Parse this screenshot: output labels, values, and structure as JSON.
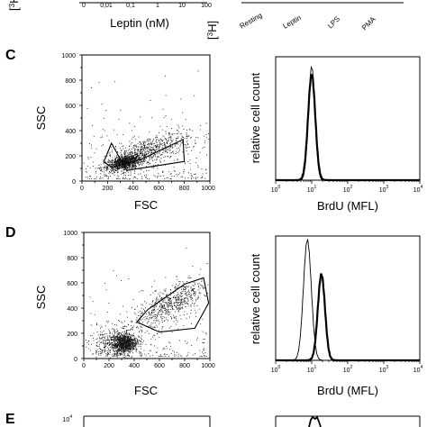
{
  "top_strip": {
    "left_ticks": [
      "0",
      "0,01",
      "0,1",
      "1",
      "10",
      "100"
    ],
    "left_xlabel": "Leptin (nM)",
    "ylabel_base": "[",
    "ylabel_sup": "3",
    "ylabel_tail": "H]",
    "right_categories": [
      "Resting",
      "Leptin",
      "LPS",
      "PMA"
    ]
  },
  "panels": [
    {
      "id": "C",
      "label": "C",
      "scatter": {
        "xlabel": "FSC",
        "ylabel": "SSC",
        "xticks": [
          "0",
          "200",
          "400",
          "600",
          "800",
          "1000"
        ],
        "yticks": [
          "0",
          "200",
          "400",
          "600",
          "800",
          "1000"
        ],
        "gate": [
          [
            230,
            300
          ],
          [
            170,
            150
          ],
          [
            240,
            110
          ],
          [
            470,
            175
          ],
          [
            790,
            330
          ],
          [
            800,
            155
          ],
          [
            350,
            85
          ]
        ]
      },
      "histogram": {
        "xlabel": "BrdU (MFL)",
        "ylabel": "relative cell count",
        "xtick_exponents": [
          "0",
          "1",
          "2",
          "3",
          "4"
        ],
        "series": [
          {
            "style": "thin",
            "peak_log": 1.0,
            "width": 0.09,
            "height": 0.93
          },
          {
            "style": "thick",
            "peak_log": 1.0,
            "width": 0.1,
            "height": 0.87
          }
        ]
      }
    },
    {
      "id": "D",
      "label": "D",
      "scatter": {
        "xlabel": "FSC",
        "ylabel": "SSC",
        "xticks": [
          "0",
          "200",
          "400",
          "600",
          "800",
          "1000"
        ],
        "yticks": [
          "0",
          "200",
          "400",
          "600",
          "800",
          "1000"
        ],
        "gate": [
          [
            420,
            290
          ],
          [
            510,
            390
          ],
          [
            800,
            590
          ],
          [
            950,
            640
          ],
          [
            990,
            440
          ],
          [
            880,
            240
          ],
          [
            600,
            210
          ]
        ]
      },
      "histogram": {
        "xlabel": "BrdU (MFL)",
        "ylabel": "relative cell count",
        "xtick_exponents": [
          "0",
          "1",
          "2",
          "3",
          "4"
        ],
        "series": [
          {
            "style": "thin",
            "peak_log": 0.88,
            "width": 0.11,
            "height": 0.98
          },
          {
            "style": "thick",
            "peak_log": 1.27,
            "width": 0.1,
            "height": 0.7
          }
        ]
      }
    },
    {
      "id": "E",
      "label": "E",
      "partial": true,
      "scatter_ytick_top_base": "10",
      "scatter_ytick_top_exp": "4"
    }
  ]
}
